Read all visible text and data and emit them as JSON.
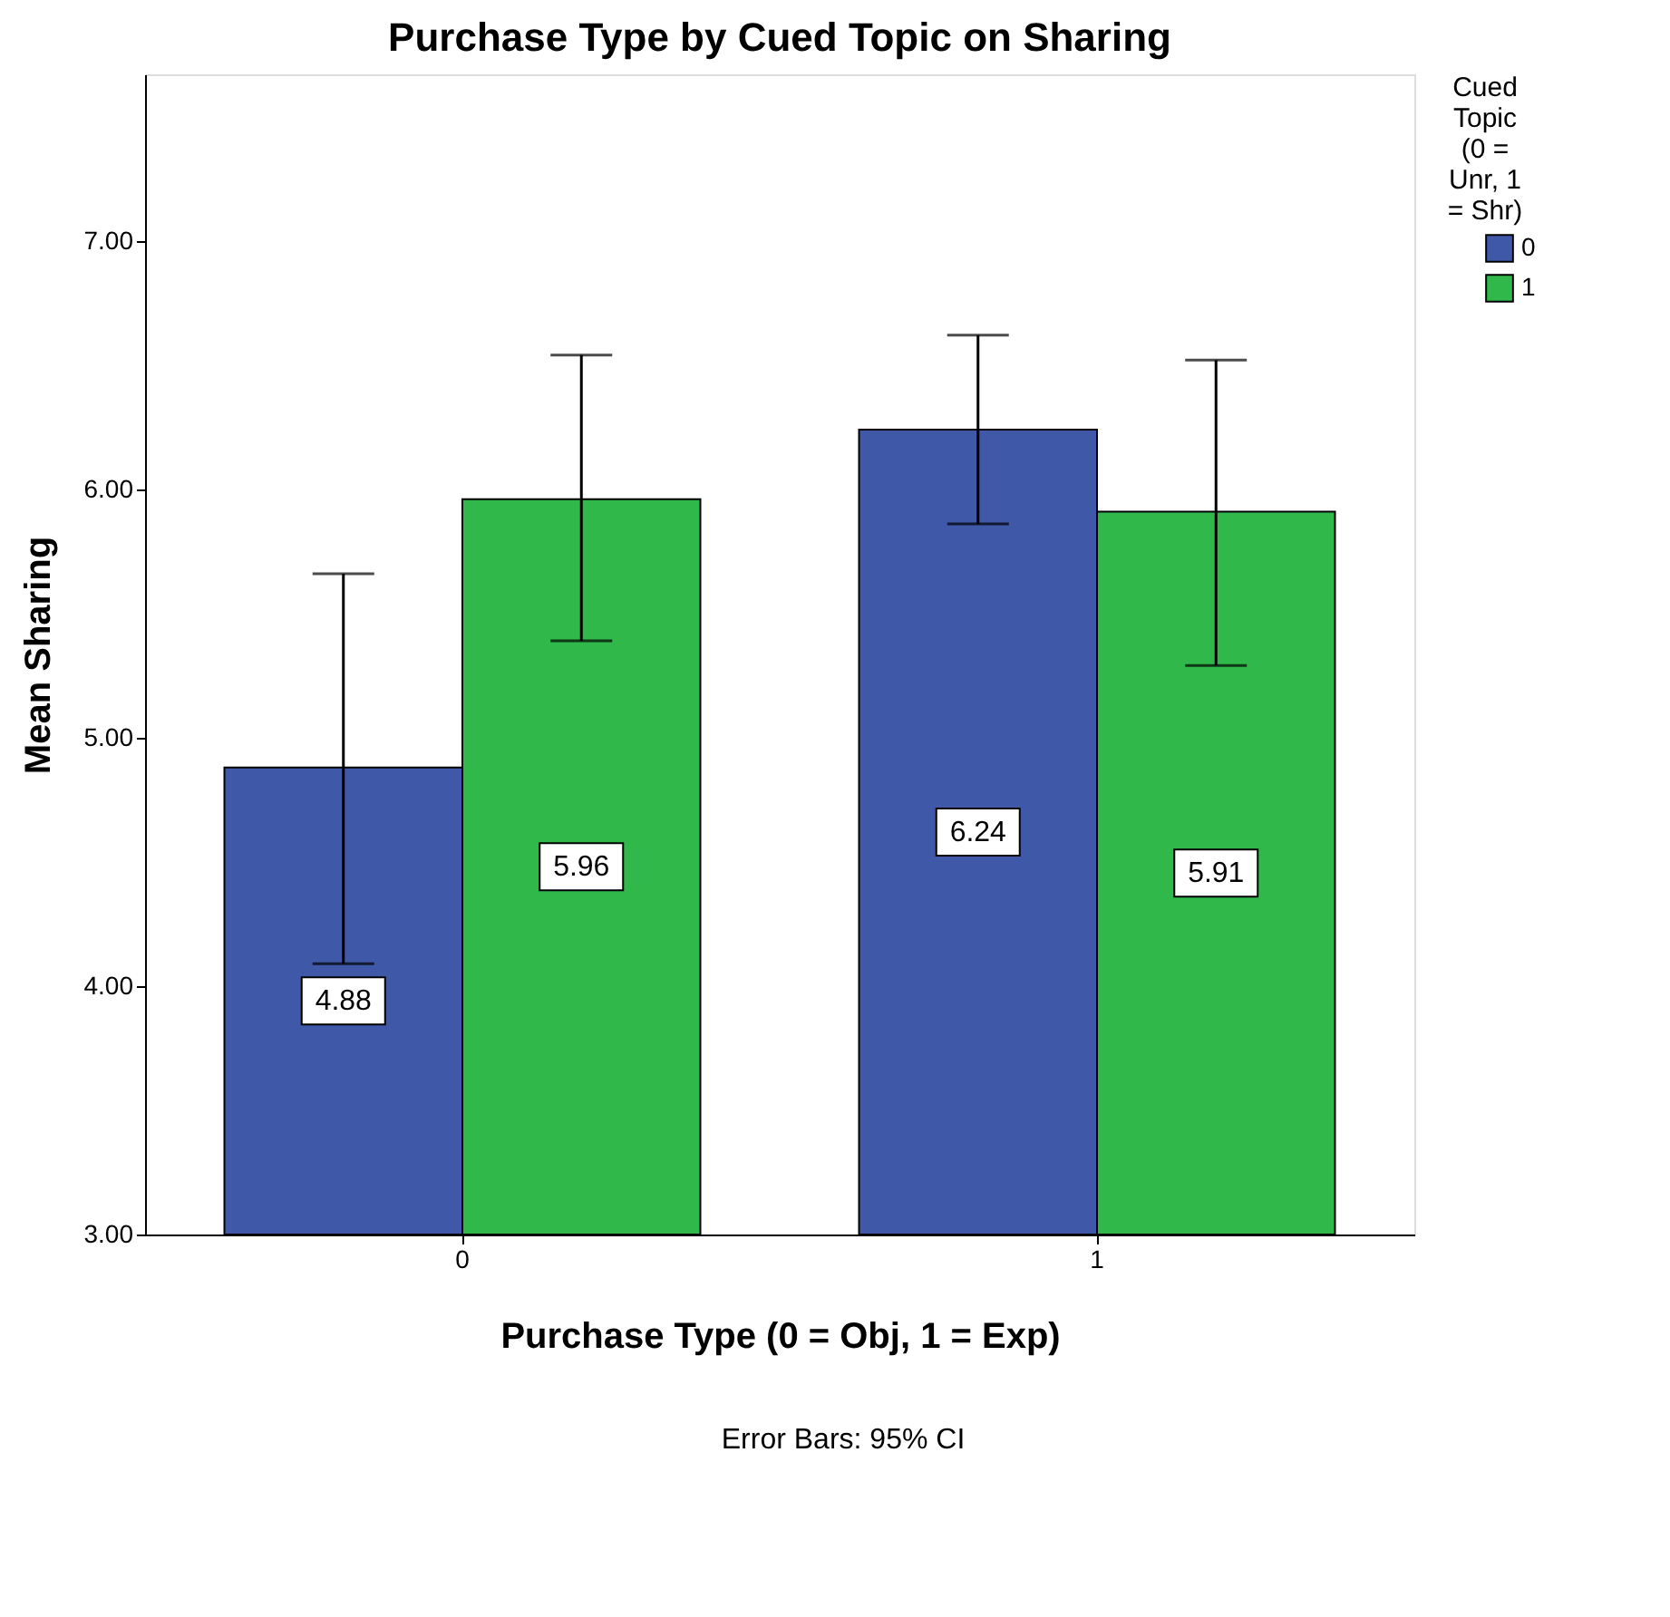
{
  "chart_data": {
    "type": "bar",
    "title": "Purchase Type by Cued Topic on Sharing",
    "xlabel": "Purchase Type (0 = Obj, 1 = Exp)",
    "ylabel": "Mean Sharing",
    "legend_title": "Cued Topic (0 = Unr, 1 = Shr)",
    "categories": [
      "0",
      "1"
    ],
    "series": [
      {
        "name": "0",
        "color": "#3f58a8",
        "values": [
          4.88,
          6.24
        ],
        "errors": [
          [
            4.09,
            5.66
          ],
          [
            5.86,
            6.62
          ]
        ]
      },
      {
        "name": "1",
        "color": "#30b84a",
        "values": [
          5.96,
          5.91
        ],
        "errors": [
          [
            5.39,
            6.54
          ],
          [
            5.29,
            6.52
          ]
        ]
      }
    ],
    "ylim": [
      3,
      7.67
    ],
    "yticks": [
      {
        "value": 3,
        "label": "3.00"
      },
      {
        "value": 4,
        "label": "4.00"
      },
      {
        "value": 5,
        "label": "5.00"
      },
      {
        "value": 6,
        "label": "6.00"
      },
      {
        "value": 7,
        "label": "7.00"
      }
    ],
    "data_labels": true,
    "grid": false,
    "legend": "top right",
    "annotations": [
      "Error Bars: 95% CI"
    ]
  }
}
